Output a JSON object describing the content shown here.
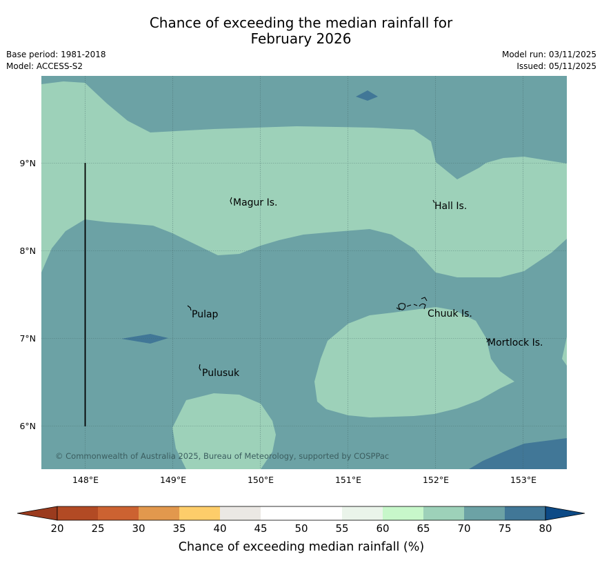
{
  "title_line1": "Chance of exceeding the median rainfall for",
  "title_line2": "February 2026",
  "base_period": "Base period: 1981-2018",
  "model": "Model: ACCESS-S2",
  "model_run": "Model run: 03/11/2025",
  "issued": "Issued: 05/11/2025",
  "map": {
    "lat_ticks": [
      "9°N",
      "8°N",
      "7°N",
      "6°N"
    ],
    "lon_ticks": [
      "148°E",
      "149°E",
      "150°E",
      "151°E",
      "152°E",
      "153°E"
    ],
    "places": [
      "Magur Is.",
      "Hall Is.",
      "Pulap",
      "Chuuk Is.",
      "Mortlock Is.",
      "Pulusuk"
    ],
    "copyright": "© Commonwealth of Australia 2025, Bureau of Meteorology, supported by COSPPac"
  },
  "legend": {
    "label": "Chance of exceeding median rainfall (%)",
    "ticks": [
      "20",
      "25",
      "30",
      "35",
      "40",
      "45",
      "50",
      "55",
      "60",
      "65",
      "70",
      "75",
      "80"
    ],
    "colors": [
      "#b24a24",
      "#cc6231",
      "#e2984d",
      "#fdcd6a",
      "#ebe8e4",
      "#ffffff",
      "#ffffff",
      "#eaf4ea",
      "#c7f7ca",
      "#9dd1b9",
      "#6ca2a5",
      "#417797"
    ],
    "under_color": "#9b3b1e",
    "over_color": "#0d4a86"
  },
  "colors": {
    "c60_70": "#9dd1b9",
    "c70_75": "#6ca2a5",
    "c75_80": "#417797"
  }
}
